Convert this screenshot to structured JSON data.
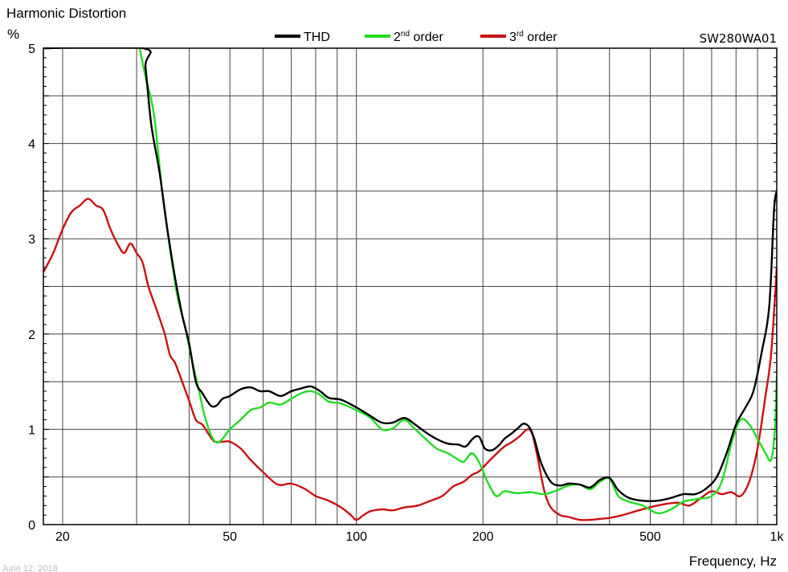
{
  "chart_data": {
    "type": "line",
    "title": "Harmonic Distortion",
    "model": "SW280WA01",
    "ylabel": "%",
    "xlabel": "Frequency, Hz",
    "date": "June 12, 2018",
    "x_scale": "log",
    "xlim": [
      18,
      1000
    ],
    "ylim": [
      0,
      5
    ],
    "grid": true,
    "legend_position": "top-center",
    "x_ticks": [
      {
        "value": 20,
        "label": "20"
      },
      {
        "value": 50,
        "label": "50"
      },
      {
        "value": 100,
        "label": "100"
      },
      {
        "value": 200,
        "label": "200"
      },
      {
        "value": 500,
        "label": "500"
      },
      {
        "value": 1000,
        "label": "1k"
      }
    ],
    "x_gridlines": [
      20,
      30,
      40,
      50,
      60,
      70,
      80,
      90,
      100,
      200,
      300,
      400,
      500,
      600,
      700,
      800,
      900
    ],
    "y_ticks": [
      {
        "value": 0,
        "label": "0"
      },
      {
        "value": 1,
        "label": "1"
      },
      {
        "value": 2,
        "label": "2"
      },
      {
        "value": 3,
        "label": "3"
      },
      {
        "value": 4,
        "label": "4"
      },
      {
        "value": 5,
        "label": "5"
      }
    ],
    "y_gridlines": [
      0.5,
      1,
      1.5,
      2,
      2.5,
      3,
      3.5,
      4,
      4.5
    ],
    "series": [
      {
        "name": "THD",
        "color": "#000000",
        "points": [
          [
            18,
            5
          ],
          [
            31,
            5
          ],
          [
            31.5,
            4.8
          ],
          [
            32.5,
            4.2
          ],
          [
            34,
            3.7
          ],
          [
            35.5,
            3.1
          ],
          [
            37,
            2.6
          ],
          [
            38.5,
            2.2
          ],
          [
            40,
            1.9
          ],
          [
            41.5,
            1.5
          ],
          [
            43,
            1.38
          ],
          [
            45,
            1.25
          ],
          [
            46.5,
            1.25
          ],
          [
            48,
            1.32
          ],
          [
            50,
            1.35
          ],
          [
            53,
            1.42
          ],
          [
            56,
            1.44
          ],
          [
            59,
            1.4
          ],
          [
            62,
            1.4
          ],
          [
            66,
            1.35
          ],
          [
            70,
            1.4
          ],
          [
            74,
            1.43
          ],
          [
            78,
            1.45
          ],
          [
            82,
            1.4
          ],
          [
            86,
            1.33
          ],
          [
            92,
            1.31
          ],
          [
            100,
            1.23
          ],
          [
            108,
            1.14
          ],
          [
            115,
            1.07
          ],
          [
            122,
            1.07
          ],
          [
            130,
            1.12
          ],
          [
            138,
            1.05
          ],
          [
            146,
            0.97
          ],
          [
            155,
            0.9
          ],
          [
            165,
            0.85
          ],
          [
            175,
            0.84
          ],
          [
            182,
            0.82
          ],
          [
            190,
            0.91
          ],
          [
            196,
            0.92
          ],
          [
            202,
            0.8
          ],
          [
            210,
            0.78
          ],
          [
            218,
            0.83
          ],
          [
            225,
            0.9
          ],
          [
            233,
            0.95
          ],
          [
            242,
            1.01
          ],
          [
            250,
            1.06
          ],
          [
            258,
            1.02
          ],
          [
            265,
            0.9
          ],
          [
            275,
            0.65
          ],
          [
            290,
            0.45
          ],
          [
            305,
            0.41
          ],
          [
            320,
            0.43
          ],
          [
            340,
            0.42
          ],
          [
            360,
            0.39
          ],
          [
            380,
            0.47
          ],
          [
            400,
            0.49
          ],
          [
            420,
            0.36
          ],
          [
            445,
            0.28
          ],
          [
            480,
            0.25
          ],
          [
            520,
            0.25
          ],
          [
            560,
            0.28
          ],
          [
            600,
            0.32
          ],
          [
            640,
            0.32
          ],
          [
            680,
            0.38
          ],
          [
            720,
            0.5
          ],
          [
            760,
            0.75
          ],
          [
            800,
            1.05
          ],
          [
            840,
            1.22
          ],
          [
            880,
            1.4
          ],
          [
            920,
            1.8
          ],
          [
            960,
            2.3
          ],
          [
            985,
            3.3
          ],
          [
            1000,
            3.5
          ]
        ]
      },
      {
        "name": "2nd order",
        "color": "#22dd22",
        "points": [
          [
            30.5,
            5
          ],
          [
            31.5,
            4.7
          ],
          [
            33,
            4.3
          ],
          [
            34.5,
            3.5
          ],
          [
            36,
            2.9
          ],
          [
            37.5,
            2.4
          ],
          [
            39,
            2.1
          ],
          [
            40.5,
            1.75
          ],
          [
            42,
            1.45
          ],
          [
            43.5,
            1.15
          ],
          [
            45,
            0.95
          ],
          [
            46.5,
            0.86
          ],
          [
            48,
            0.9
          ],
          [
            50,
            1.0
          ],
          [
            53,
            1.1
          ],
          [
            56,
            1.2
          ],
          [
            59,
            1.23
          ],
          [
            62,
            1.28
          ],
          [
            66,
            1.26
          ],
          [
            70,
            1.32
          ],
          [
            74,
            1.38
          ],
          [
            78,
            1.4
          ],
          [
            82,
            1.36
          ],
          [
            86,
            1.29
          ],
          [
            92,
            1.27
          ],
          [
            100,
            1.2
          ],
          [
            108,
            1.12
          ],
          [
            115,
            1.0
          ],
          [
            122,
            1.01
          ],
          [
            130,
            1.1
          ],
          [
            138,
            1.0
          ],
          [
            146,
            0.9
          ],
          [
            155,
            0.8
          ],
          [
            165,
            0.75
          ],
          [
            172,
            0.7
          ],
          [
            180,
            0.66
          ],
          [
            188,
            0.75
          ],
          [
            196,
            0.65
          ],
          [
            205,
            0.45
          ],
          [
            215,
            0.3
          ],
          [
            225,
            0.35
          ],
          [
            240,
            0.33
          ],
          [
            260,
            0.34
          ],
          [
            280,
            0.32
          ],
          [
            300,
            0.36
          ],
          [
            320,
            0.41
          ],
          [
            340,
            0.42
          ],
          [
            360,
            0.37
          ],
          [
            380,
            0.45
          ],
          [
            400,
            0.48
          ],
          [
            420,
            0.3
          ],
          [
            445,
            0.24
          ],
          [
            480,
            0.2
          ],
          [
            520,
            0.12
          ],
          [
            560,
            0.16
          ],
          [
            600,
            0.24
          ],
          [
            650,
            0.27
          ],
          [
            700,
            0.3
          ],
          [
            740,
            0.45
          ],
          [
            780,
            0.85
          ],
          [
            820,
            1.1
          ],
          [
            860,
            1.05
          ],
          [
            900,
            0.9
          ],
          [
            940,
            0.75
          ],
          [
            970,
            0.68
          ],
          [
            990,
            1.0
          ],
          [
            1000,
            1.55
          ]
        ]
      },
      {
        "name": "3rd order",
        "color": "#cc1111",
        "points": [
          [
            18,
            2.65
          ],
          [
            19,
            2.85
          ],
          [
            20,
            3.1
          ],
          [
            21,
            3.28
          ],
          [
            22,
            3.35
          ],
          [
            23,
            3.42
          ],
          [
            24,
            3.35
          ],
          [
            25,
            3.3
          ],
          [
            26,
            3.1
          ],
          [
            27,
            2.95
          ],
          [
            28,
            2.85
          ],
          [
            29,
            2.95
          ],
          [
            30,
            2.85
          ],
          [
            31,
            2.75
          ],
          [
            32,
            2.5
          ],
          [
            33.5,
            2.25
          ],
          [
            35,
            2.0
          ],
          [
            36,
            1.78
          ],
          [
            37,
            1.7
          ],
          [
            38.5,
            1.5
          ],
          [
            40,
            1.3
          ],
          [
            41.5,
            1.1
          ],
          [
            43,
            1.05
          ],
          [
            44.5,
            0.95
          ],
          [
            46,
            0.87
          ],
          [
            48,
            0.87
          ],
          [
            50,
            0.87
          ],
          [
            53,
            0.8
          ],
          [
            56,
            0.68
          ],
          [
            60,
            0.55
          ],
          [
            65,
            0.42
          ],
          [
            70,
            0.43
          ],
          [
            75,
            0.38
          ],
          [
            80,
            0.3
          ],
          [
            86,
            0.25
          ],
          [
            92,
            0.18
          ],
          [
            97,
            0.1
          ],
          [
            100,
            0.05
          ],
          [
            104,
            0.1
          ],
          [
            108,
            0.14
          ],
          [
            115,
            0.16
          ],
          [
            122,
            0.15
          ],
          [
            130,
            0.18
          ],
          [
            140,
            0.2
          ],
          [
            150,
            0.25
          ],
          [
            160,
            0.3
          ],
          [
            170,
            0.4
          ],
          [
            180,
            0.45
          ],
          [
            188,
            0.52
          ],
          [
            196,
            0.56
          ],
          [
            205,
            0.65
          ],
          [
            215,
            0.74
          ],
          [
            225,
            0.82
          ],
          [
            235,
            0.87
          ],
          [
            245,
            0.93
          ],
          [
            255,
            1.0
          ],
          [
            262,
            0.95
          ],
          [
            270,
            0.7
          ],
          [
            280,
            0.35
          ],
          [
            290,
            0.18
          ],
          [
            305,
            0.1
          ],
          [
            320,
            0.08
          ],
          [
            340,
            0.05
          ],
          [
            360,
            0.05
          ],
          [
            380,
            0.06
          ],
          [
            400,
            0.07
          ],
          [
            430,
            0.1
          ],
          [
            470,
            0.15
          ],
          [
            520,
            0.2
          ],
          [
            580,
            0.23
          ],
          [
            620,
            0.2
          ],
          [
            660,
            0.28
          ],
          [
            700,
            0.35
          ],
          [
            740,
            0.32
          ],
          [
            780,
            0.34
          ],
          [
            820,
            0.3
          ],
          [
            860,
            0.45
          ],
          [
            900,
            0.8
          ],
          [
            940,
            1.35
          ],
          [
            970,
            1.8
          ],
          [
            1000,
            2.7
          ]
        ]
      }
    ]
  }
}
